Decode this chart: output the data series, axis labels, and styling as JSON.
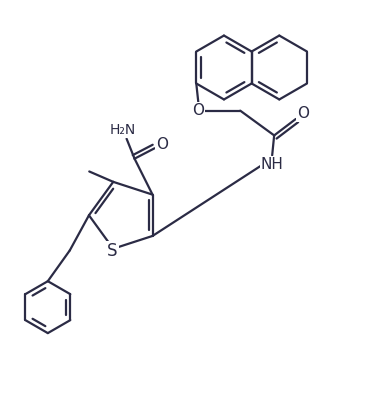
{
  "bg_color": "#ffffff",
  "line_color": "#2b2b45",
  "line_width": 1.6,
  "font_size": 10,
  "figsize": [
    3.84,
    4.09
  ],
  "dpi": 100,
  "xlim": [
    0,
    9.6
  ],
  "ylim": [
    0,
    10.24
  ]
}
